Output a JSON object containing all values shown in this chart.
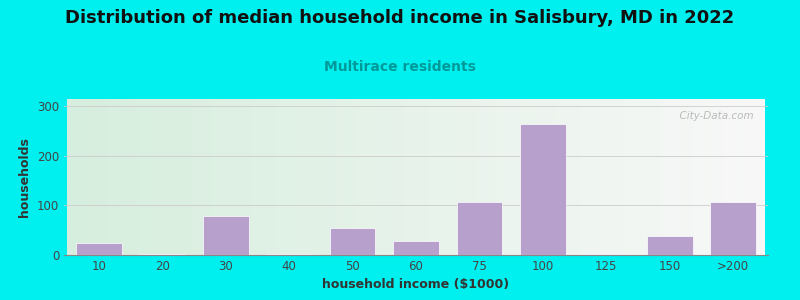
{
  "title": "Distribution of median household income in Salisbury, MD in 2022",
  "subtitle": "Multirace residents",
  "xlabel": "household income ($1000)",
  "ylabel": "households",
  "bar_labels": [
    "10",
    "20",
    "30",
    "40",
    "50",
    "60",
    "75",
    "100",
    "125",
    "150",
    ">200"
  ],
  "bar_values": [
    25,
    2,
    78,
    2,
    55,
    28,
    108,
    265,
    2,
    38,
    108
  ],
  "bar_color": "#b8a0cc",
  "bar_edge_color": "#ffffff",
  "bg_color_left": "#d6eedd",
  "bg_color_right": "#f8f8f8",
  "outer_bg": "#00efef",
  "yticks": [
    0,
    100,
    200,
    300
  ],
  "ylim": [
    0,
    315
  ],
  "title_fontsize": 13,
  "subtitle_fontsize": 10,
  "axis_label_fontsize": 9,
  "tick_fontsize": 8.5,
  "watermark_text": "  City-Data.com"
}
